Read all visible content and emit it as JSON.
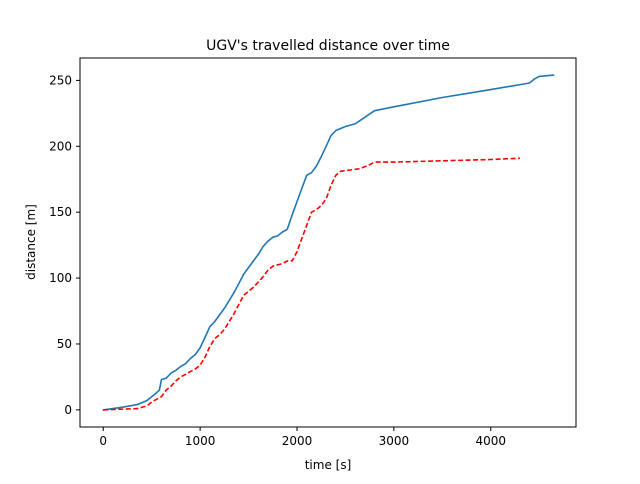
{
  "chart_data": {
    "type": "line",
    "title": "UGV's travelled distance over time",
    "xlabel": "time [s]",
    "ylabel": "distance [m]",
    "xlim": [
      -240,
      4880
    ],
    "ylim": [
      -13,
      267
    ],
    "xticks": [
      0,
      1000,
      2000,
      3000,
      4000
    ],
    "yticks": [
      0,
      50,
      100,
      150,
      200,
      250
    ],
    "grid": false,
    "legend": "none",
    "series": [
      {
        "color": "#1f77b4",
        "style": "solid",
        "points": [
          [
            0,
            0
          ],
          [
            200,
            2
          ],
          [
            350,
            4
          ],
          [
            450,
            7
          ],
          [
            500,
            10
          ],
          [
            550,
            13
          ],
          [
            580,
            15
          ],
          [
            600,
            23
          ],
          [
            650,
            24
          ],
          [
            700,
            28
          ],
          [
            750,
            30
          ],
          [
            800,
            33
          ],
          [
            850,
            35
          ],
          [
            900,
            39
          ],
          [
            950,
            42
          ],
          [
            1000,
            47
          ],
          [
            1050,
            55
          ],
          [
            1100,
            63
          ],
          [
            1150,
            67
          ],
          [
            1200,
            72
          ],
          [
            1250,
            77
          ],
          [
            1300,
            83
          ],
          [
            1350,
            89
          ],
          [
            1400,
            96
          ],
          [
            1450,
            103
          ],
          [
            1500,
            108
          ],
          [
            1550,
            113
          ],
          [
            1600,
            118
          ],
          [
            1650,
            124
          ],
          [
            1700,
            128
          ],
          [
            1750,
            131
          ],
          [
            1800,
            132
          ],
          [
            1850,
            135
          ],
          [
            1900,
            137
          ],
          [
            1950,
            148
          ],
          [
            2000,
            158
          ],
          [
            2050,
            168
          ],
          [
            2100,
            178
          ],
          [
            2150,
            180
          ],
          [
            2200,
            185
          ],
          [
            2250,
            192
          ],
          [
            2300,
            200
          ],
          [
            2350,
            208
          ],
          [
            2400,
            212
          ],
          [
            2500,
            215
          ],
          [
            2600,
            217
          ],
          [
            2700,
            222
          ],
          [
            2800,
            227
          ],
          [
            3000,
            230
          ],
          [
            3500,
            237
          ],
          [
            4000,
            243
          ],
          [
            4400,
            248
          ],
          [
            4450,
            251
          ],
          [
            4500,
            253
          ],
          [
            4650,
            254
          ]
        ]
      },
      {
        "color": "#ff0000",
        "style": "dashed",
        "points": [
          [
            0,
            0
          ],
          [
            350,
            1
          ],
          [
            450,
            3
          ],
          [
            500,
            6
          ],
          [
            550,
            8
          ],
          [
            600,
            10
          ],
          [
            650,
            15
          ],
          [
            700,
            18
          ],
          [
            750,
            22
          ],
          [
            800,
            25
          ],
          [
            850,
            27
          ],
          [
            900,
            29
          ],
          [
            950,
            31
          ],
          [
            1000,
            34
          ],
          [
            1050,
            40
          ],
          [
            1100,
            48
          ],
          [
            1150,
            54
          ],
          [
            1200,
            57
          ],
          [
            1250,
            61
          ],
          [
            1300,
            67
          ],
          [
            1350,
            73
          ],
          [
            1400,
            80
          ],
          [
            1450,
            87
          ],
          [
            1500,
            90
          ],
          [
            1550,
            93
          ],
          [
            1600,
            97
          ],
          [
            1650,
            101
          ],
          [
            1700,
            106
          ],
          [
            1750,
            109
          ],
          [
            1800,
            110
          ],
          [
            1850,
            111
          ],
          [
            1900,
            113
          ],
          [
            1950,
            113
          ],
          [
            2000,
            120
          ],
          [
            2050,
            130
          ],
          [
            2100,
            140
          ],
          [
            2150,
            150
          ],
          [
            2200,
            152
          ],
          [
            2250,
            155
          ],
          [
            2300,
            160
          ],
          [
            2350,
            170
          ],
          [
            2400,
            178
          ],
          [
            2450,
            181
          ],
          [
            2550,
            182
          ],
          [
            2650,
            183
          ],
          [
            2750,
            186
          ],
          [
            2800,
            188
          ],
          [
            3000,
            188
          ],
          [
            3500,
            189
          ],
          [
            4000,
            190
          ],
          [
            4300,
            191
          ]
        ]
      }
    ]
  }
}
